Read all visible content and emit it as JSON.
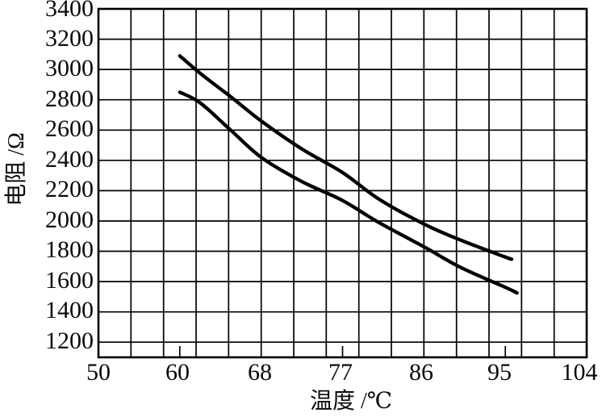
{
  "chart_data": {
    "type": "line",
    "title": "",
    "xlabel": "温度 /℃",
    "ylabel": "电阻 /Ω",
    "grid": true,
    "legend": "none",
    "line_color": "#000000",
    "x_axis": {
      "tick_values": [
        50,
        60,
        68,
        77,
        86,
        95,
        104
      ],
      "tick_labels": [
        "50",
        "60",
        "68",
        "77",
        "86",
        "95",
        "104"
      ],
      "minor_tick_marks_at": [
        60,
        77,
        95
      ],
      "layout_note": "tick labels equally spaced (non-linear temperature scale), 15 grid columns total"
    },
    "y_axis": {
      "min": 1100,
      "max": 3400,
      "gridline_step": 200,
      "tick_labels": [
        "3400",
        "3200",
        "3000",
        "2800",
        "2600",
        "2400",
        "2200",
        "2000",
        "1800",
        "1600",
        "1400",
        "1200"
      ]
    },
    "series": [
      {
        "name": "upper-curve",
        "points": [
          [
            60,
            3090
          ],
          [
            62,
            2975
          ],
          [
            65,
            2820
          ],
          [
            68,
            2660
          ],
          [
            72.5,
            2475
          ],
          [
            77,
            2320
          ],
          [
            81,
            2145
          ],
          [
            86,
            1980
          ],
          [
            90,
            1875
          ],
          [
            95,
            1762
          ],
          [
            95.7,
            1748
          ]
        ]
      },
      {
        "name": "lower-curve",
        "points": [
          [
            60,
            2850
          ],
          [
            62,
            2780
          ],
          [
            65,
            2600
          ],
          [
            68,
            2420
          ],
          [
            72.5,
            2260
          ],
          [
            77,
            2135
          ],
          [
            81,
            1990
          ],
          [
            86,
            1830
          ],
          [
            90,
            1695
          ],
          [
            95,
            1562
          ],
          [
            96.3,
            1525
          ]
        ]
      }
    ]
  }
}
